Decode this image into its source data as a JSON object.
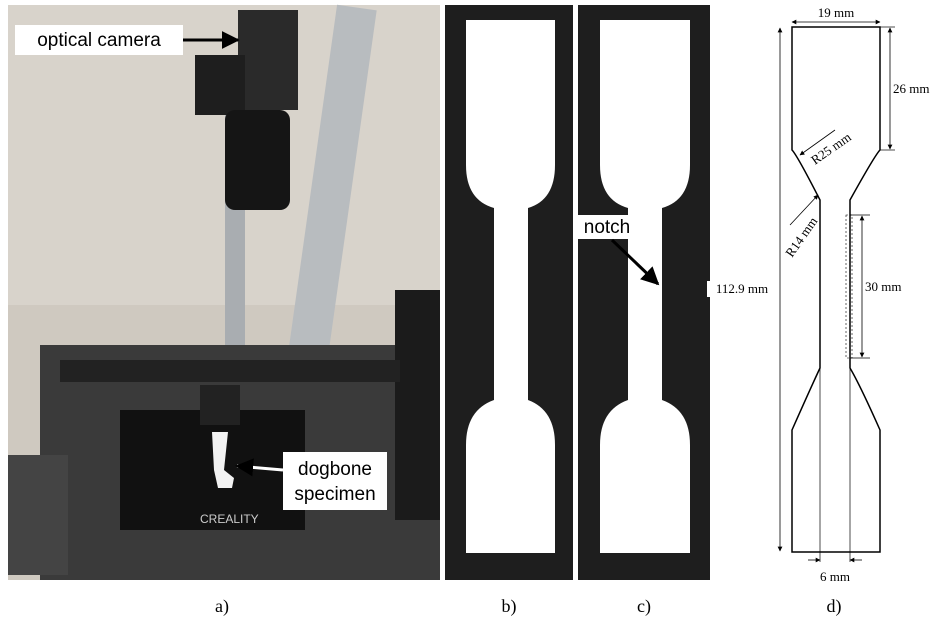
{
  "panels": [
    {
      "caption": "a)",
      "labels": [
        "optical camera",
        "dogbone",
        "specimen"
      ]
    },
    {
      "caption": "b)"
    },
    {
      "caption": "c)",
      "labels": [
        "notch"
      ]
    },
    {
      "caption": "d)",
      "dimensions": [
        "19 mm",
        "26 mm",
        "R25 mm",
        "R14 mm",
        "112.9 mm",
        "30 mm",
        "6 mm"
      ]
    }
  ]
}
